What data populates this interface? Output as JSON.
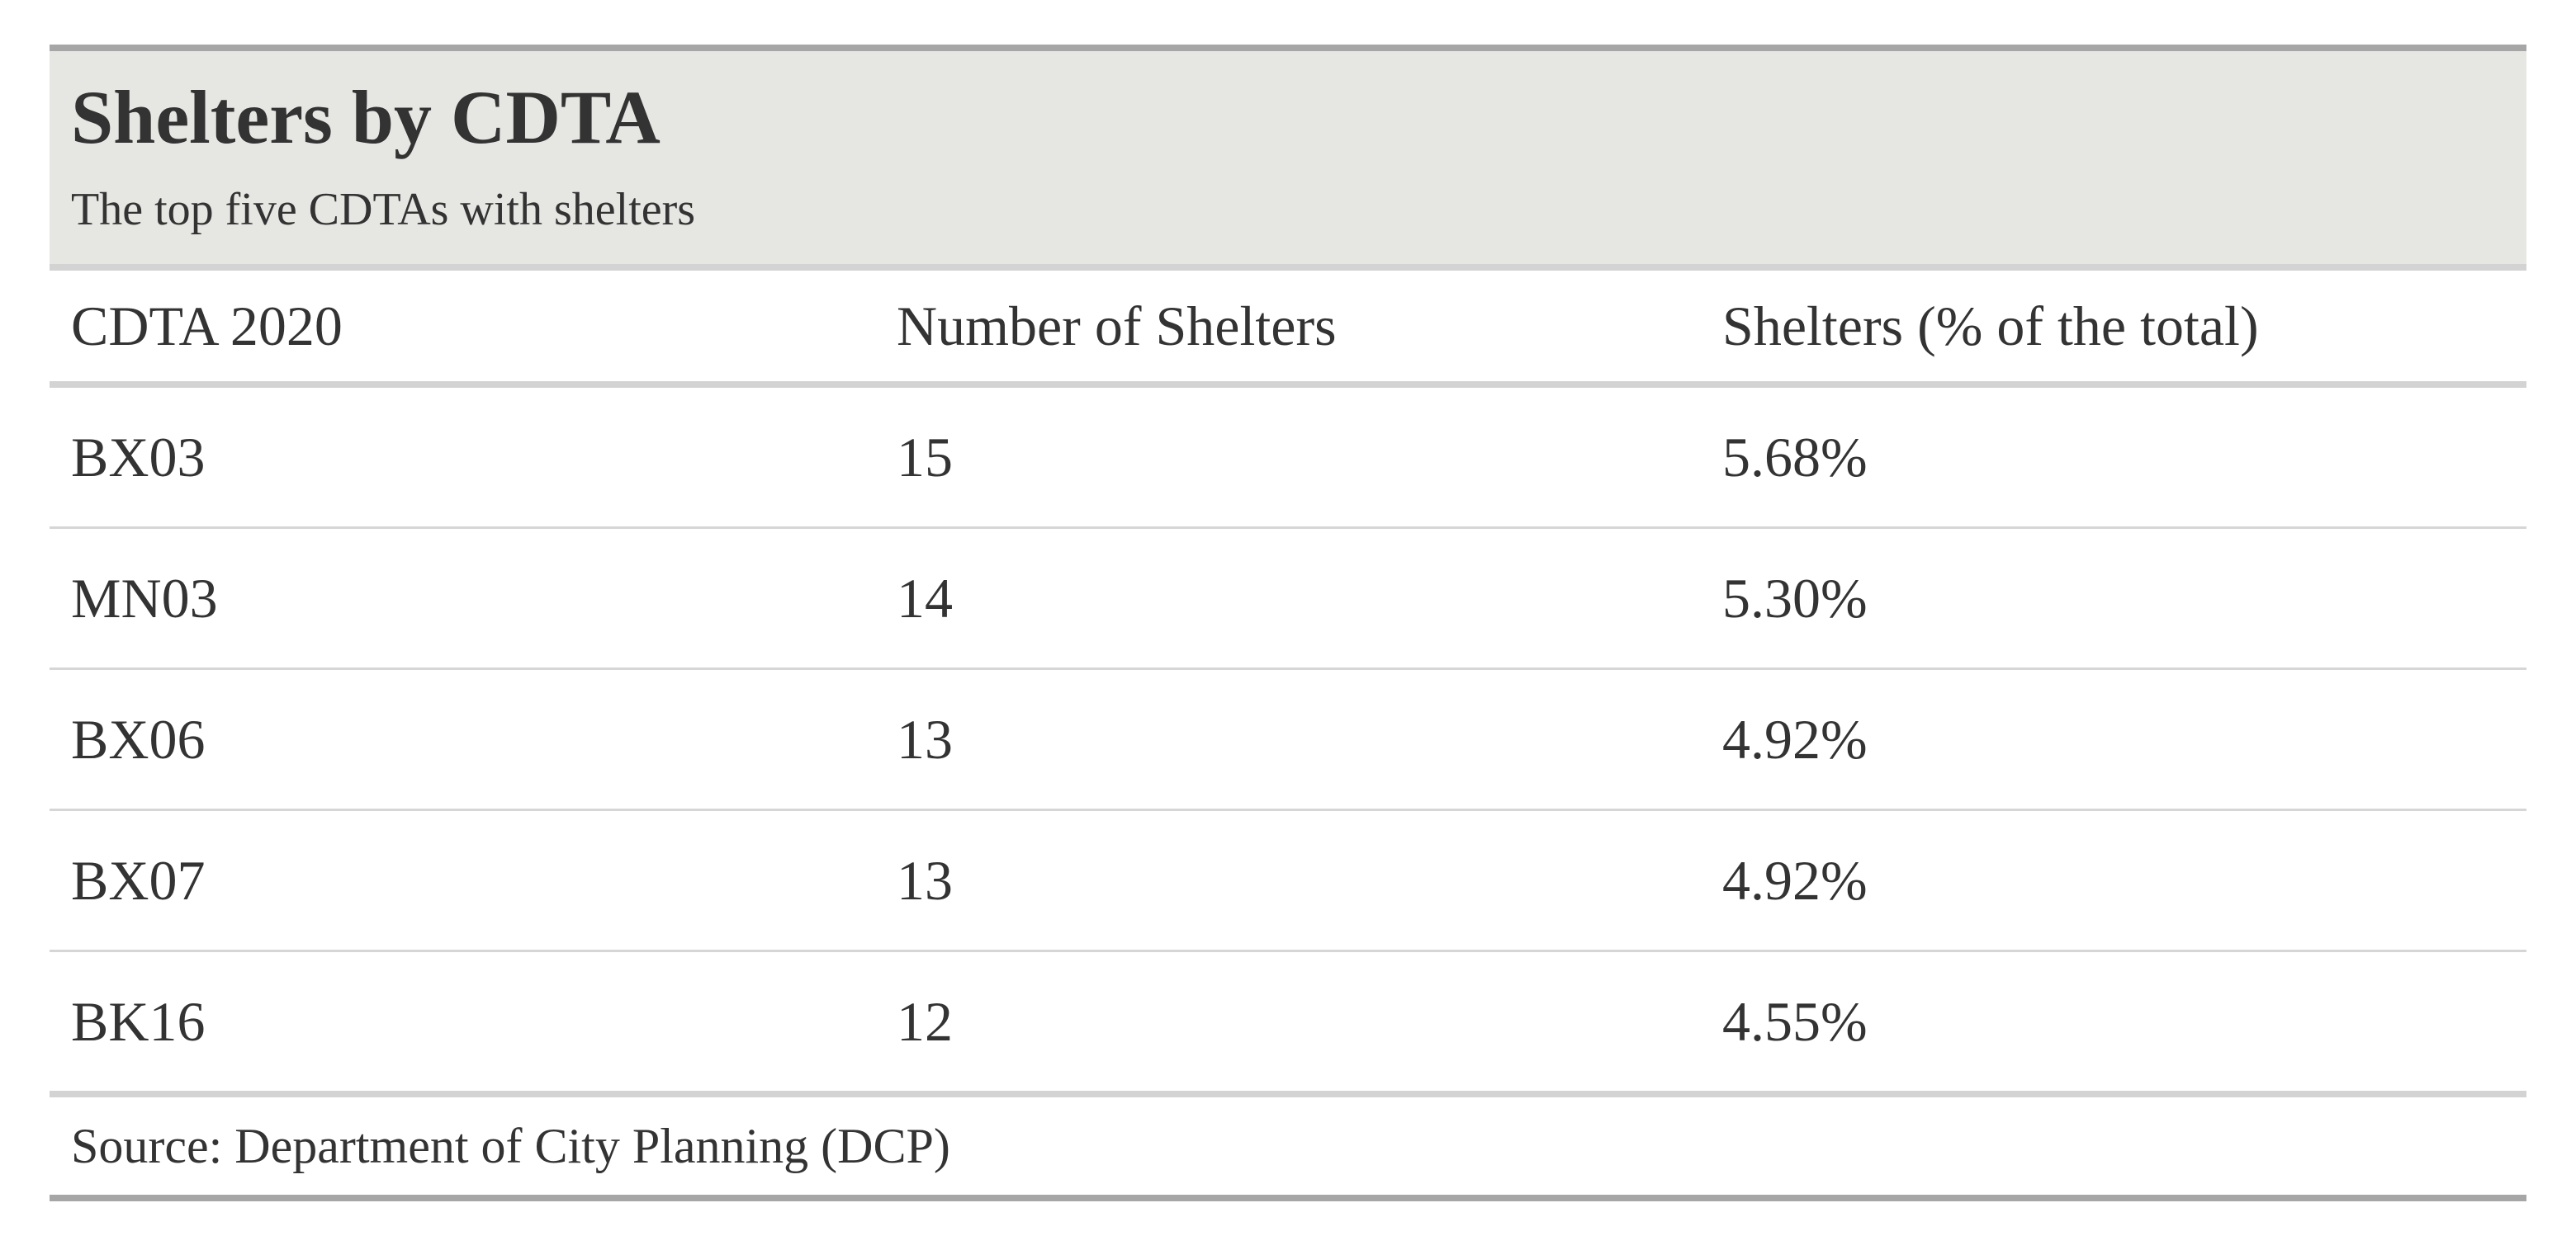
{
  "chart_data": {
    "type": "table",
    "title": "Shelters by CDTA",
    "subtitle": "The top five CDTAs with shelters",
    "columns": [
      "CDTA 2020",
      "Number of Shelters",
      "Shelters (% of the total)"
    ],
    "rows": [
      [
        "BX03",
        "15",
        "5.68%"
      ],
      [
        "MN03",
        "14",
        "5.30%"
      ],
      [
        "BX06",
        "13",
        "4.92%"
      ],
      [
        "BX07",
        "13",
        "4.92%"
      ],
      [
        "BK16",
        "12",
        "4.55%"
      ]
    ],
    "source": "Source: Department of City Planning (DCP)"
  }
}
